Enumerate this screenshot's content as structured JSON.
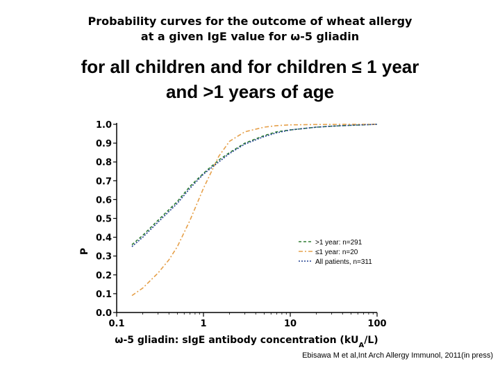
{
  "header": {
    "subtitle_line1": "Probability curves for the outcome of wheat allergy",
    "subtitle_line2": "at a given IgE value for ω-5 gliadin",
    "title_line1": "for all children and for children ≤ 1 year",
    "title_line2": "and >1 years of age"
  },
  "citation": "Ebisawa M et al,Int Arch Allergy Immunol, 2011(in press)",
  "chart_data": {
    "type": "line",
    "title": "for all children and for children ≤ 1 year and >1 years of age",
    "xlabel_prefix": "ω-5 gliadin: sIgE antibody concentration (kU",
    "xlabel_sub": "A",
    "xlabel_suffix": "/L)",
    "ylabel": "P",
    "xscale": "log",
    "xlim": [
      0.1,
      100
    ],
    "ylim": [
      0.0,
      1.0
    ],
    "xticks": [
      0.1,
      1,
      10,
      100
    ],
    "xtick_labels": [
      "0.1",
      "1",
      "10",
      "100"
    ],
    "yticks": [
      0.0,
      0.1,
      0.2,
      0.3,
      0.4,
      0.5,
      0.6,
      0.7,
      0.8,
      0.9,
      1.0
    ],
    "ytick_labels": [
      "0.0",
      "0.1",
      "0.2",
      "0.3",
      "0.4",
      "0.5",
      "0.6",
      "0.7",
      "0.8",
      "0.9",
      "1.0"
    ],
    "grid": false,
    "legend_position": "lower-right",
    "series": [
      {
        "name": ">1 year: n=291",
        "color": "#2e7d32",
        "style": "dashed",
        "x": [
          0.15,
          0.2,
          0.3,
          0.5,
          0.7,
          1,
          1.5,
          2,
          3,
          5,
          7,
          10,
          20,
          30,
          50,
          100
        ],
        "y": [
          0.36,
          0.41,
          0.49,
          0.59,
          0.67,
          0.74,
          0.81,
          0.85,
          0.9,
          0.94,
          0.96,
          0.97,
          0.985,
          0.99,
          0.995,
          1.0
        ]
      },
      {
        "name": "≤1 year: n=20",
        "color": "#e6a04a",
        "style": "dashdot",
        "x": [
          0.15,
          0.2,
          0.3,
          0.4,
          0.5,
          0.7,
          1,
          1.5,
          2,
          3,
          5,
          7,
          10,
          20,
          50,
          100
        ],
        "y": [
          0.09,
          0.13,
          0.21,
          0.28,
          0.35,
          0.49,
          0.66,
          0.83,
          0.91,
          0.96,
          0.985,
          0.993,
          0.997,
          0.999,
          1.0,
          1.0
        ]
      },
      {
        "name": "All patients, n=311",
        "color": "#1f3f8f",
        "style": "dotted",
        "x": [
          0.15,
          0.2,
          0.3,
          0.5,
          0.7,
          1,
          1.5,
          2,
          3,
          5,
          7,
          10,
          20,
          30,
          50,
          100
        ],
        "y": [
          0.35,
          0.4,
          0.48,
          0.58,
          0.66,
          0.735,
          0.8,
          0.845,
          0.895,
          0.935,
          0.955,
          0.97,
          0.985,
          0.99,
          0.995,
          1.0
        ]
      }
    ]
  }
}
